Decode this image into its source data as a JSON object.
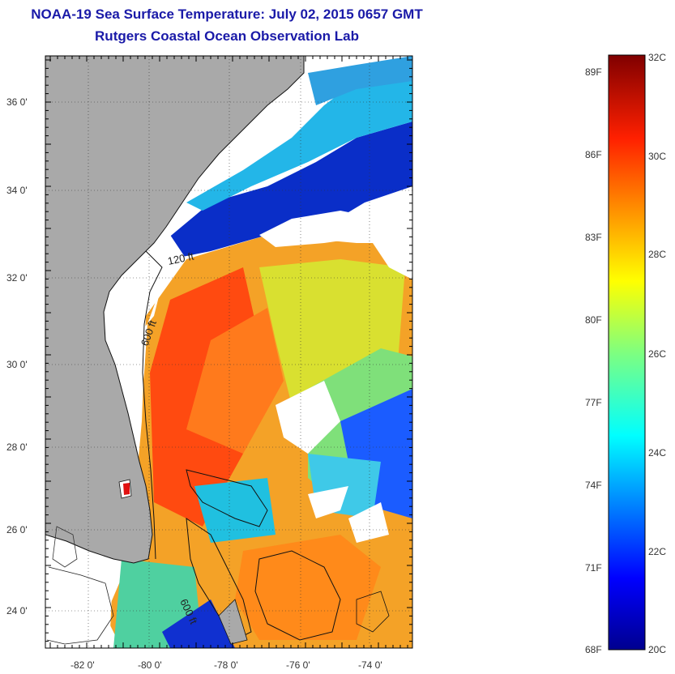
{
  "title": {
    "line1": "NOAA-19 Sea Surface Temperature:  July 02, 2015 0657 GMT",
    "line2": "Rutgers Coastal Ocean Observation Lab"
  },
  "map": {
    "lat_ticks": [
      "36 0'",
      "34 0'",
      "32 0'",
      "30 0'",
      "28 0'",
      "26 0'",
      "24 0'"
    ],
    "lon_ticks": [
      "-82 0'",
      "-80 0'",
      "-78 0'",
      "-76 0'",
      "-74 0'"
    ],
    "contour_labels": [
      "120 ft",
      "600 ft",
      "600 ft"
    ],
    "colors": {
      "land": "#a9a9a9",
      "cloud": "#ffffff"
    }
  },
  "colorbar": {
    "fahrenheit": [
      "89F",
      "86F",
      "83F",
      "80F",
      "77F",
      "74F",
      "71F",
      "68F"
    ],
    "celsius": [
      "32C",
      "30C",
      "28C",
      "26C",
      "24C",
      "22C",
      "20C"
    ]
  }
}
